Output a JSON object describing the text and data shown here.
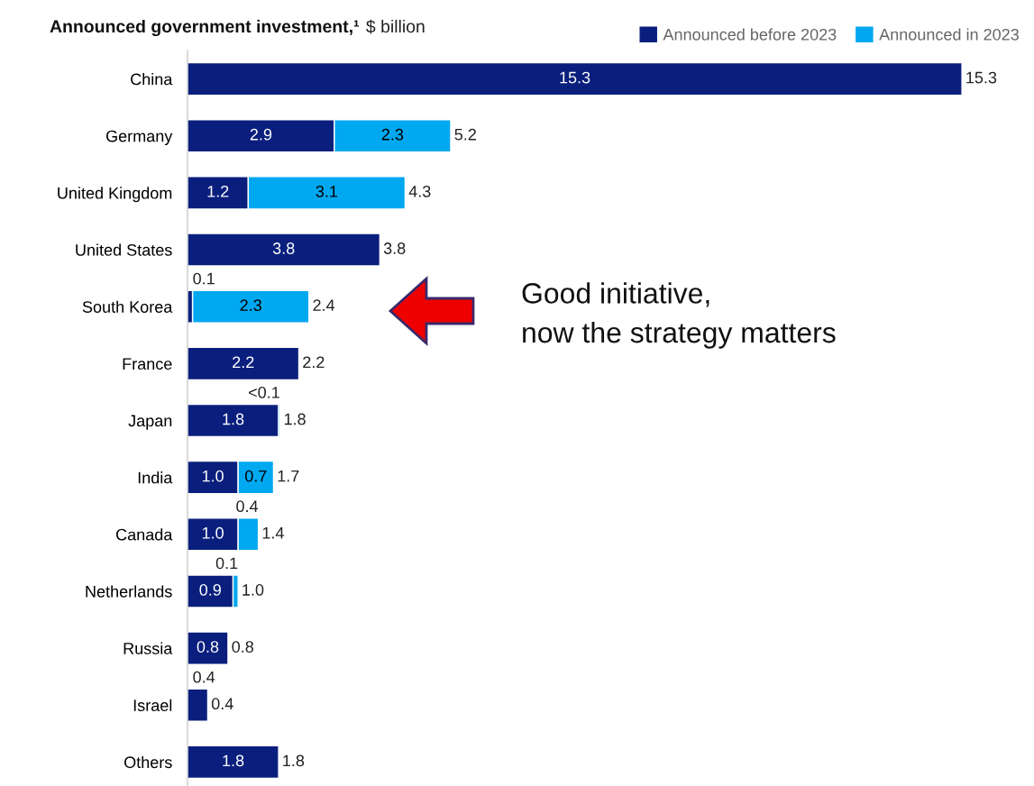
{
  "chart_data": {
    "type": "bar",
    "orientation": "horizontal",
    "stacked": true,
    "title": "Announced government investment,¹",
    "subtitle": "$ billion",
    "categories": [
      "China",
      "Germany",
      "United Kingdom",
      "United States",
      "South Korea",
      "France",
      "Japan",
      "India",
      "Canada",
      "Netherlands",
      "Russia",
      "Israel",
      "Others"
    ],
    "series": [
      {
        "name": "Announced before 2023",
        "color": "#0a1f7d",
        "values": [
          15.3,
          2.9,
          1.2,
          3.8,
          0.1,
          2.2,
          1.8,
          1.0,
          1.0,
          0.9,
          0.8,
          0.4,
          1.8
        ],
        "value_labels": [
          "15.3",
          "2.9",
          "1.2",
          "3.8",
          "0.1",
          "2.2",
          "1.8",
          "1.0",
          "1.0",
          "0.9",
          "0.8",
          "0.4",
          "1.8"
        ]
      },
      {
        "name": "Announced in 2023",
        "color": "#00a8f0",
        "values": [
          null,
          2.3,
          3.1,
          null,
          2.3,
          null,
          0.03,
          0.7,
          0.4,
          0.1,
          null,
          null,
          null
        ],
        "value_labels": [
          null,
          "2.3",
          "3.1",
          null,
          "2.3",
          null,
          "<0.1",
          "0.7",
          "0.4",
          "0.1",
          null,
          null,
          null
        ]
      }
    ],
    "totals": [
      "15.3",
      "5.2",
      "4.3",
      "3.8",
      "2.4",
      "2.2",
      "1.8",
      "1.7",
      "1.4",
      "1.0",
      "0.8",
      "0.4",
      "1.8"
    ],
    "annotations": [
      "Good initiative,\nnow the strategy matters"
    ],
    "legend": "top right",
    "grid": false,
    "tick_labels": "y"
  }
}
